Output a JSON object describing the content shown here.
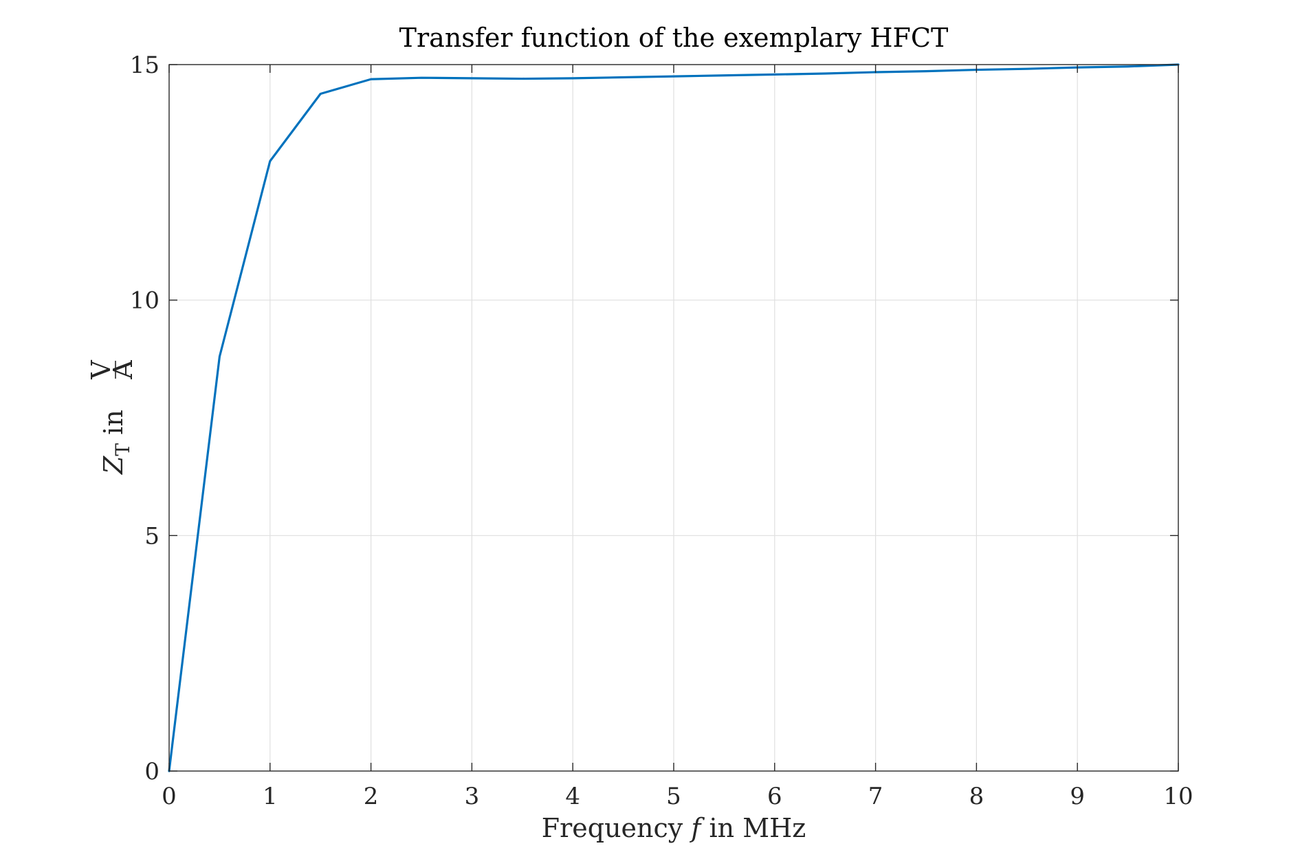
{
  "chart_data": {
    "type": "line",
    "title": "Transfer function of the exemplary HFCT",
    "xlabel": {
      "prefix": "Frequency ",
      "variable": "f",
      "suffix": " in MHz"
    },
    "ylabel": {
      "variable": "Z",
      "subscript": "T",
      "middle": " in ",
      "numerator": "V",
      "denominator": "A"
    },
    "xlim": [
      0,
      10
    ],
    "ylim": [
      0,
      15
    ],
    "xticks": [
      "0",
      "1",
      "2",
      "3",
      "4",
      "5",
      "6",
      "7",
      "8",
      "9",
      "10"
    ],
    "yticks": [
      "0",
      "5",
      "10",
      "15"
    ],
    "grid": true,
    "series": [
      {
        "color": "#0072bd",
        "x": [
          0,
          0.5,
          1,
          1.5,
          2,
          2.5,
          3,
          3.5,
          4,
          4.5,
          5,
          5.5,
          6,
          6.5,
          7,
          7.5,
          8,
          8.5,
          9,
          9.5,
          10
        ],
        "y": [
          0,
          8.8,
          12.95,
          14.38,
          14.69,
          14.72,
          14.71,
          14.7,
          14.71,
          14.73,
          14.75,
          14.77,
          14.79,
          14.81,
          14.84,
          14.86,
          14.89,
          14.91,
          14.94,
          14.96,
          15.0
        ]
      }
    ]
  }
}
